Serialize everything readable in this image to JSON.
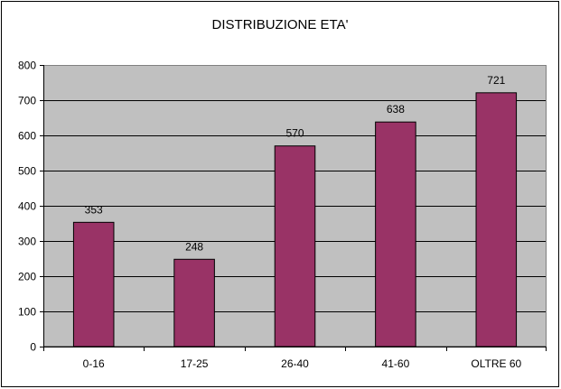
{
  "chart_data": {
    "type": "bar",
    "title": "DISTRIBUZIONE ETA'",
    "xlabel": "",
    "ylabel": "",
    "categories": [
      "0-16",
      "17-25",
      "26-40",
      "41-60",
      "OLTRE 60"
    ],
    "values": [
      353,
      248,
      570,
      638,
      721
    ],
    "data_labels": [
      "353",
      "248",
      "570",
      "638",
      "721"
    ],
    "ylim": [
      0,
      800
    ],
    "yticks": [
      0,
      100,
      200,
      300,
      400,
      500,
      600,
      700,
      800
    ],
    "grid": true,
    "legend": "none",
    "colors": {
      "bar_fill": "#993366",
      "plot_background": "#c0c0c0",
      "gridline": "#000000",
      "frame_border": "#000000"
    }
  }
}
